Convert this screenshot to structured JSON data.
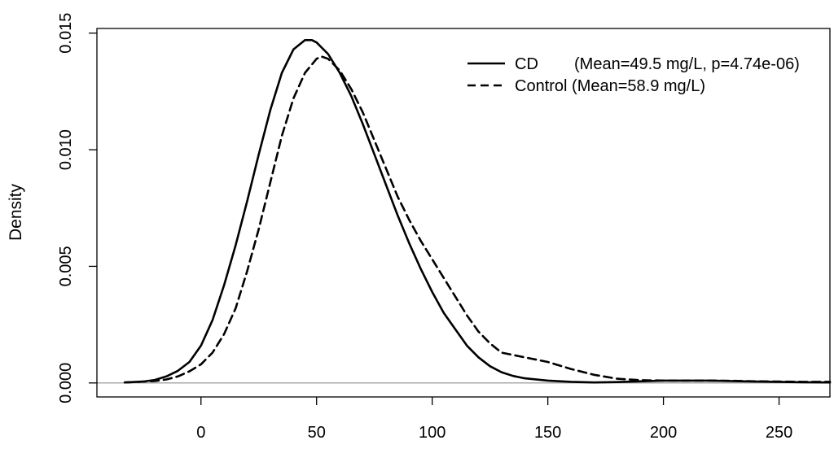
{
  "chart_data": {
    "type": "line",
    "title": "",
    "xlabel": "",
    "ylabel": "Density",
    "xlim": [
      -45,
      272
    ],
    "ylim": [
      -0.0006,
      0.0152
    ],
    "x_ticks": [
      0,
      50,
      100,
      150,
      200,
      250
    ],
    "y_ticks": [
      0.0,
      0.005,
      0.01,
      0.015
    ],
    "x_tick_labels": [
      "0",
      "50",
      "100",
      "150",
      "200",
      "250"
    ],
    "y_tick_labels": [
      "0.000",
      "0.005",
      "0.010",
      "0.015"
    ],
    "baseline_color": "#aaaaaa",
    "legend": {
      "position": "top-right",
      "entries": [
        {
          "line": "solid",
          "name": "CD",
          "desc": "(Mean=49.5 mg/L, p=4.74e-06)"
        },
        {
          "line": "dashed",
          "name": "Control (Mean=58.9 mg/L)",
          "desc": ""
        }
      ]
    },
    "series": [
      {
        "name": "CD",
        "style": "solid",
        "x": [
          -33,
          -25,
          -20,
          -15,
          -10,
          -5,
          0,
          5,
          10,
          15,
          20,
          25,
          30,
          35,
          40,
          45,
          48,
          50,
          55,
          60,
          65,
          70,
          75,
          80,
          85,
          90,
          95,
          100,
          105,
          110,
          115,
          120,
          125,
          130,
          135,
          140,
          150,
          160,
          170,
          180,
          190,
          200,
          220,
          240,
          260,
          272
        ],
        "y": [
          2e-05,
          6e-05,
          0.00013,
          0.00028,
          0.00052,
          0.0009,
          0.0016,
          0.0027,
          0.0042,
          0.0059,
          0.0078,
          0.0098,
          0.0117,
          0.0133,
          0.0143,
          0.0147,
          0.0147,
          0.0146,
          0.0141,
          0.0133,
          0.0123,
          0.0111,
          0.0098,
          0.0085,
          0.0072,
          0.006,
          0.0049,
          0.0039,
          0.003,
          0.0023,
          0.0016,
          0.0011,
          0.00072,
          0.00046,
          0.0003,
          0.0002,
          0.0001,
          5e-05,
          2e-05,
          4e-05,
          7e-05,
          0.0001,
          0.0001,
          6e-05,
          3e-05,
          2e-05
        ]
      },
      {
        "name": "Control",
        "style": "dashed",
        "x": [
          -33,
          -20,
          -15,
          -10,
          -5,
          0,
          5,
          10,
          15,
          20,
          25,
          30,
          35,
          40,
          45,
          50,
          52,
          55,
          60,
          65,
          70,
          75,
          80,
          85,
          90,
          95,
          100,
          105,
          110,
          115,
          120,
          125,
          130,
          140,
          150,
          160,
          170,
          180,
          190,
          200,
          210,
          220,
          230,
          240,
          250,
          260,
          272
        ],
        "y": [
          2e-05,
          8e-05,
          0.00015,
          0.00028,
          0.0005,
          0.0008,
          0.0013,
          0.0021,
          0.0032,
          0.0048,
          0.0066,
          0.0086,
          0.0106,
          0.0122,
          0.0133,
          0.0139,
          0.014,
          0.0139,
          0.0134,
          0.0126,
          0.0116,
          0.0104,
          0.0092,
          0.008,
          0.007,
          0.0061,
          0.0053,
          0.0045,
          0.0037,
          0.0029,
          0.0022,
          0.0017,
          0.0013,
          0.0011,
          0.0009,
          0.0006,
          0.00035,
          0.00018,
          0.00012,
          0.0001,
          0.0001,
          0.0001,
          9e-05,
          7e-05,
          6e-05,
          5e-05,
          5e-05
        ]
      }
    ]
  }
}
